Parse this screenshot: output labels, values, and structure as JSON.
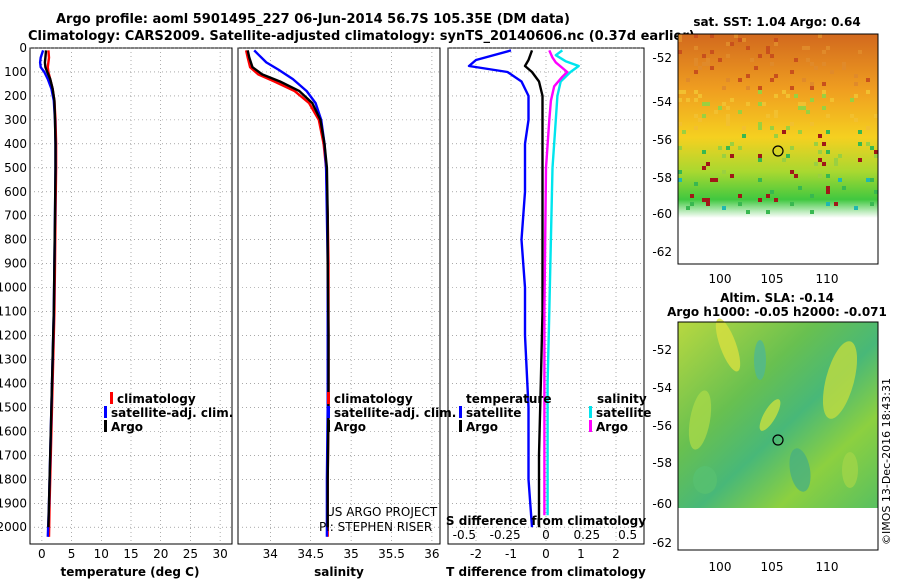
{
  "header": {
    "line1": "Argo profile: aoml 5901495_227 06-Jun-2014 56.7S 105.35E (DM data)",
    "line2": "Climatology: CARS2009. Satellite-adjusted climatology: synTS_20140606.nc (0.37d earlier)"
  },
  "colors": {
    "climatology": "#ff0000",
    "satellite": "#0000ff",
    "argo": "#000000",
    "sal_satellite": "#00e5ee",
    "sal_argo": "#ff00ff"
  },
  "chart_data": [
    {
      "type": "line",
      "name": "temperature",
      "xlabel": "temperature (deg C)",
      "ylabel": "depth",
      "xlim": [
        -2,
        32
      ],
      "ylim": [
        2070,
        0
      ],
      "xticks": [
        0,
        5,
        10,
        15,
        20,
        25,
        30
      ],
      "yticks": [
        0,
        100,
        200,
        300,
        400,
        500,
        600,
        700,
        800,
        900,
        1000,
        1100,
        1200,
        1300,
        1400,
        1500,
        1600,
        1700,
        1800,
        1900,
        2000
      ],
      "legend": [
        "climatology",
        "satellite-adj. clim.",
        "Argo"
      ],
      "series": [
        {
          "name": "climatology",
          "points": [
            [
              1.1,
              10
            ],
            [
              1.2,
              40
            ],
            [
              1.1,
              60
            ],
            [
              1.0,
              80
            ],
            [
              1.1,
              100
            ],
            [
              1.4,
              130
            ],
            [
              1.8,
              170
            ],
            [
              2.1,
              220
            ],
            [
              2.3,
              300
            ],
            [
              2.4,
              400
            ],
            [
              2.4,
              500
            ],
            [
              2.3,
              700
            ],
            [
              2.2,
              900
            ],
            [
              2.1,
              1100
            ],
            [
              1.9,
              1300
            ],
            [
              1.7,
              1500
            ],
            [
              1.5,
              1700
            ],
            [
              1.3,
              1900
            ],
            [
              1.2,
              2040
            ]
          ]
        },
        {
          "name": "satellite-adj. clim.",
          "points": [
            [
              0.2,
              10
            ],
            [
              -0.2,
              40
            ],
            [
              -0.3,
              60
            ],
            [
              -0.2,
              80
            ],
            [
              0.4,
              100
            ],
            [
              1.0,
              130
            ],
            [
              1.6,
              170
            ],
            [
              2.0,
              220
            ],
            [
              2.2,
              300
            ],
            [
              2.3,
              400
            ],
            [
              2.3,
              500
            ],
            [
              2.2,
              700
            ],
            [
              2.1,
              900
            ],
            [
              2.0,
              1100
            ],
            [
              1.8,
              1300
            ],
            [
              1.6,
              1500
            ],
            [
              1.4,
              1700
            ],
            [
              1.2,
              1900
            ],
            [
              1.0,
              2040
            ]
          ]
        },
        {
          "name": "Argo",
          "points": [
            [
              0.7,
              10
            ],
            [
              0.6,
              40
            ],
            [
              0.5,
              60
            ],
            [
              0.6,
              80
            ],
            [
              0.9,
              100
            ],
            [
              1.4,
              130
            ],
            [
              1.8,
              170
            ],
            [
              2.1,
              220
            ],
            [
              2.2,
              300
            ],
            [
              2.3,
              400
            ],
            [
              2.3,
              500
            ],
            [
              2.2,
              700
            ],
            [
              2.1,
              900
            ],
            [
              2.0,
              1100
            ],
            [
              1.8,
              1300
            ],
            [
              1.6,
              1500
            ],
            [
              1.4,
              1700
            ],
            [
              1.2,
              1900
            ],
            [
              1.1,
              2000
            ]
          ]
        }
      ]
    },
    {
      "type": "line",
      "name": "salinity",
      "xlabel": "salinity",
      "xlim": [
        33.6,
        36.1
      ],
      "ylim": [
        2070,
        0
      ],
      "xticks": [
        34,
        34.5,
        35,
        35.5,
        36
      ],
      "xtick_labels": [
        "34",
        "34.5",
        "35",
        "35.5",
        "36"
      ],
      "legend": [
        "climatology",
        "satellite-adj. clim.",
        "Argo"
      ],
      "series": [
        {
          "name": "climatology",
          "points": [
            [
              33.7,
              10
            ],
            [
              33.72,
              40
            ],
            [
              33.75,
              80
            ],
            [
              33.85,
              110
            ],
            [
              34.05,
              140
            ],
            [
              34.3,
              180
            ],
            [
              34.48,
              230
            ],
            [
              34.6,
              300
            ],
            [
              34.66,
              400
            ],
            [
              34.69,
              500
            ],
            [
              34.71,
              700
            ],
            [
              34.72,
              900
            ],
            [
              34.72,
              1200
            ],
            [
              34.72,
              1500
            ],
            [
              34.71,
              1800
            ],
            [
              34.71,
              2040
            ]
          ]
        },
        {
          "name": "satellite-adj. clim.",
          "points": [
            [
              33.8,
              10
            ],
            [
              33.86,
              30
            ],
            [
              33.95,
              60
            ],
            [
              34.1,
              90
            ],
            [
              34.28,
              130
            ],
            [
              34.45,
              180
            ],
            [
              34.56,
              230
            ],
            [
              34.63,
              300
            ],
            [
              34.67,
              400
            ],
            [
              34.69,
              500
            ],
            [
              34.7,
              700
            ],
            [
              34.71,
              900
            ],
            [
              34.71,
              1200
            ],
            [
              34.71,
              1500
            ],
            [
              34.7,
              1800
            ],
            [
              34.7,
              2040
            ]
          ]
        },
        {
          "name": "Argo",
          "points": [
            [
              33.72,
              10
            ],
            [
              33.74,
              40
            ],
            [
              33.78,
              80
            ],
            [
              33.9,
              110
            ],
            [
              34.12,
              140
            ],
            [
              34.36,
              180
            ],
            [
              34.52,
              230
            ],
            [
              34.62,
              300
            ],
            [
              34.67,
              400
            ],
            [
              34.7,
              500
            ],
            [
              34.71,
              700
            ],
            [
              34.71,
              900
            ],
            [
              34.72,
              1200
            ],
            [
              34.72,
              1500
            ],
            [
              34.71,
              1800
            ],
            [
              34.71,
              2000
            ]
          ]
        }
      ],
      "annotation": [
        "US ARGO PROJECT",
        "PI: STEPHEN RISER"
      ]
    },
    {
      "type": "line",
      "name": "difference from climatology",
      "xlabel": "T difference from climatology",
      "xlabel_top": "S difference from climatology",
      "xlim": [
        -2.8,
        2.8
      ],
      "ylim": [
        2070,
        0
      ],
      "xticks": [
        -2,
        -1,
        0,
        1,
        2
      ],
      "s_xticks": [
        -0.5,
        -0.25,
        0,
        0.25,
        0.5
      ],
      "s_xtick_labels": [
        "-0.5",
        "-0.25",
        "0",
        "0.25",
        "0.5"
      ],
      "legend_temperature": [
        "satellite",
        "Argo"
      ],
      "legend_salinity": [
        "satellite",
        "Argo"
      ],
      "legend_heading_temperature": "temperature",
      "legend_heading_salinity": "salinity",
      "series": [
        {
          "name": "T satellite",
          "points": [
            [
              -1.0,
              10
            ],
            [
              -2.0,
              50
            ],
            [
              -2.2,
              75
            ],
            [
              -1.1,
              100
            ],
            [
              -0.7,
              140
            ],
            [
              -0.5,
              200
            ],
            [
              -0.5,
              300
            ],
            [
              -0.6,
              400
            ],
            [
              -0.6,
              600
            ],
            [
              -0.7,
              800
            ],
            [
              -0.6,
              1000
            ],
            [
              -0.6,
              1200
            ],
            [
              -0.5,
              1500
            ],
            [
              -0.5,
              1800
            ],
            [
              -0.4,
              2000
            ]
          ]
        },
        {
          "name": "T Argo",
          "points": [
            [
              -0.4,
              10
            ],
            [
              -0.5,
              50
            ],
            [
              -0.6,
              75
            ],
            [
              -0.4,
              100
            ],
            [
              -0.2,
              140
            ],
            [
              -0.1,
              200
            ],
            [
              -0.1,
              300
            ],
            [
              -0.1,
              500
            ],
            [
              -0.1,
              800
            ],
            [
              -0.1,
              1100
            ],
            [
              -0.15,
              1400
            ],
            [
              -0.2,
              1700
            ],
            [
              -0.2,
              2000
            ]
          ]
        },
        {
          "name": "S satellite",
          "points": [
            [
              0.1,
              10
            ],
            [
              0.06,
              30
            ],
            [
              0.12,
              55
            ],
            [
              0.2,
              75
            ],
            [
              0.15,
              100
            ],
            [
              0.09,
              140
            ],
            [
              0.07,
              200
            ],
            [
              0.06,
              300
            ],
            [
              0.04,
              500
            ],
            [
              0.03,
              800
            ],
            [
              0.02,
              1100
            ],
            [
              0.01,
              1400
            ],
            [
              0.01,
              1700
            ],
            [
              0.01,
              1950
            ]
          ]
        },
        {
          "name": "S Argo",
          "points": [
            [
              0.02,
              10
            ],
            [
              0.04,
              40
            ],
            [
              0.06,
              60
            ],
            [
              0.13,
              100
            ],
            [
              0.1,
              120
            ],
            [
              0.05,
              160
            ],
            [
              0.03,
              220
            ],
            [
              0.02,
              300
            ],
            [
              0.0,
              500
            ],
            [
              -0.005,
              800
            ],
            [
              -0.01,
              1100
            ],
            [
              -0.01,
              1400
            ],
            [
              -0.01,
              1700
            ],
            [
              -0.01,
              1950
            ]
          ]
        }
      ]
    }
  ],
  "maps": {
    "sst": {
      "title": "sat. SST: 1.04 Argo: 0.64",
      "yticks": [
        "-52",
        "-54",
        "-56",
        "-58",
        "-60",
        "-62"
      ],
      "xticks": [
        "100",
        "105",
        "110"
      ]
    },
    "sla": {
      "title": "Altim. SLA: -0.14",
      "subtitle": "Argo h1000: -0.05 h2000: -0.071",
      "yticks": [
        "-52",
        "-54",
        "-56",
        "-58",
        "-60",
        "-62"
      ],
      "xticks": [
        "100",
        "105",
        "110"
      ]
    }
  },
  "footer": {
    "stamp": "©IMOS 13-Dec-2016 18:43:31"
  }
}
